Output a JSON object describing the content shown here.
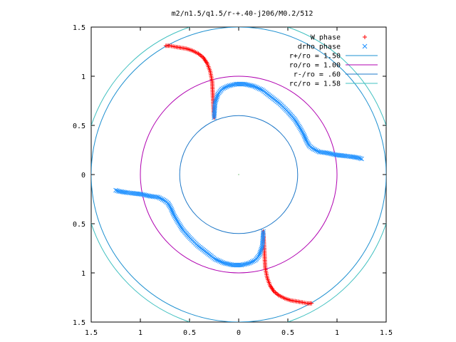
{
  "chart_data": {
    "type": "scatter",
    "title": "m2/n1.5/q1.5/r-+.40-j206/M0.2/512",
    "xlabel": "",
    "ylabel": "",
    "xlim": [
      -1.5,
      1.5
    ],
    "ylim": [
      -1.5,
      1.5
    ],
    "x_tick_values": [
      -1.5,
      -1,
      -0.5,
      0,
      0.5,
      1,
      1.5
    ],
    "x_tick_labels": [
      "1.5",
      "1",
      "0.5",
      "0",
      "0.5",
      "1",
      "1.5"
    ],
    "y_tick_values": [
      1.5,
      1,
      0.5,
      0,
      -0.5,
      -1,
      -1.5
    ],
    "y_tick_labels": [
      "1.5",
      "1",
      "0.5",
      "0",
      "0.5",
      "1",
      "1.5"
    ],
    "grid": false,
    "legend_position": "top-right",
    "series": [
      {
        "name": "W phase",
        "marker": "plus",
        "color": "#ff0000",
        "x": [
          -0.25,
          -0.26,
          -0.27,
          -0.29,
          -0.32,
          -0.36,
          -0.41,
          -0.47,
          -0.53,
          -0.59,
          -0.65,
          -0.7,
          -0.74,
          0.25,
          0.26,
          0.27,
          0.29,
          0.32,
          0.36,
          0.41,
          0.47,
          0.53,
          0.59,
          0.65,
          0.7,
          0.74
        ],
        "y": [
          0.58,
          0.75,
          0.95,
          1.05,
          1.13,
          1.19,
          1.23,
          1.26,
          1.28,
          1.29,
          1.3,
          1.31,
          1.31,
          -0.58,
          -0.75,
          -0.95,
          -1.05,
          -1.13,
          -1.19,
          -1.23,
          -1.26,
          -1.28,
          -1.29,
          -1.3,
          -1.31,
          -1.31
        ]
      },
      {
        "name": "drho phase",
        "marker": "cross",
        "color": "#1e90ff",
        "x": [
          -0.25,
          -0.24,
          -0.21,
          -0.17,
          -0.11,
          -0.03,
          0.06,
          0.15,
          0.24,
          0.33,
          0.42,
          0.5,
          0.57,
          0.62,
          0.66,
          0.69,
          0.72,
          0.76,
          0.82,
          0.9,
          0.99,
          1.08,
          1.16,
          1.22,
          1.25,
          0.25,
          0.24,
          0.21,
          0.17,
          0.11,
          0.03,
          -0.06,
          -0.15,
          -0.24,
          -0.33,
          -0.42,
          -0.5,
          -0.57,
          -0.62,
          -0.66,
          -0.69,
          -0.72,
          -0.76,
          -0.82,
          -0.9,
          -0.99,
          -1.08,
          -1.16,
          -1.22,
          -1.25
        ],
        "y": [
          0.58,
          0.73,
          0.82,
          0.87,
          0.9,
          0.92,
          0.92,
          0.9,
          0.86,
          0.79,
          0.72,
          0.64,
          0.56,
          0.48,
          0.41,
          0.34,
          0.29,
          0.26,
          0.23,
          0.22,
          0.2,
          0.19,
          0.18,
          0.17,
          0.16,
          -0.58,
          -0.73,
          -0.82,
          -0.87,
          -0.9,
          -0.92,
          -0.92,
          -0.9,
          -0.86,
          -0.79,
          -0.72,
          -0.64,
          -0.56,
          -0.48,
          -0.41,
          -0.34,
          -0.29,
          -0.26,
          -0.23,
          -0.22,
          -0.2,
          -0.19,
          -0.18,
          -0.17,
          -0.16
        ]
      },
      {
        "name": "r+/ro = 1.50",
        "type": "circle",
        "radius": 1.5,
        "color": "#1e90d0"
      },
      {
        "name": "ro/ro = 1.00",
        "type": "circle",
        "radius": 1.0,
        "color": "#b000b0"
      },
      {
        "name": "r-/ro = .60",
        "type": "circle",
        "radius": 0.6,
        "color": "#1e78c8"
      },
      {
        "name": "rc/ro = 1.58",
        "type": "circle",
        "radius": 1.58,
        "color": "#40c0c0"
      }
    ]
  }
}
